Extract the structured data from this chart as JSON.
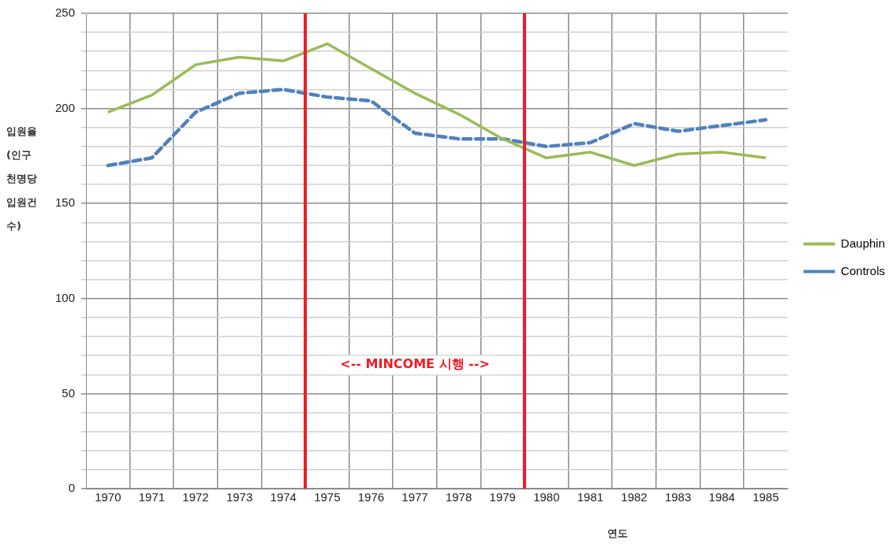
{
  "chart_data": {
    "type": "line",
    "ylabel": "입원율 (인구 천명당 입원건수)",
    "xlabel": "연도",
    "x": [
      1970,
      1971,
      1972,
      1973,
      1974,
      1975,
      1976,
      1977,
      1978,
      1979,
      1980,
      1981,
      1982,
      1983,
      1984,
      1985
    ],
    "series": [
      {
        "name": "Dauphin",
        "color": "#9bbb59",
        "line_style": "solid",
        "values": [
          198,
          207,
          223,
          227,
          225,
          234,
          221,
          208,
          197,
          184,
          174,
          177,
          170,
          176,
          177,
          174
        ]
      },
      {
        "name": "Controls",
        "color": "#4f81bd",
        "line_style": "dashed",
        "values": [
          170,
          174,
          198,
          208,
          210,
          206,
          204,
          187,
          184,
          184,
          180,
          182,
          192,
          188,
          191,
          194
        ]
      }
    ],
    "xlim": [
      1969.5,
      1985.5
    ],
    "xticks": [
      1970,
      1971,
      1972,
      1973,
      1974,
      1975,
      1976,
      1977,
      1978,
      1979,
      1980,
      1981,
      1982,
      1983,
      1984,
      1985,
      {
        "value": 1970.5,
        "label": null
      },
      {
        "value": 1971.5,
        "label": null
      },
      {
        "value": 1972.5,
        "label": null
      },
      {
        "value": 1973.5,
        "label": null
      },
      {
        "value": 1975.5,
        "label": null
      },
      {
        "value": 1976.5,
        "label": null
      },
      {
        "value": 1977.5,
        "label": null
      },
      {
        "value": 1978.5,
        "label": null
      },
      {
        "value": 1980.5,
        "label": null
      },
      {
        "value": 1981.5,
        "label": null
      },
      {
        "value": 1982.5,
        "label": null
      },
      {
        "value": 1983.5,
        "label": null
      },
      {
        "value": 1984.5,
        "label": null
      }
    ],
    "ylim": [
      0,
      250
    ],
    "yticks": [
      0,
      {
        "value": 10,
        "label": null
      },
      {
        "value": 20,
        "label": null
      },
      {
        "value": 30,
        "label": null
      },
      {
        "value": 40,
        "label": null
      },
      50,
      {
        "value": 60,
        "label": null
      },
      {
        "value": 70,
        "label": null
      },
      {
        "value": 80,
        "label": null
      },
      {
        "value": 90,
        "label": null
      },
      100,
      {
        "value": 110,
        "label": null
      },
      {
        "value": 120,
        "label": null
      },
      {
        "value": 130,
        "label": null
      },
      {
        "value": 140,
        "label": null
      },
      150,
      {
        "value": 160,
        "label": null
      },
      {
        "value": 170,
        "label": null
      },
      {
        "value": 180,
        "label": null
      },
      {
        "value": 190,
        "label": null
      },
      200,
      {
        "value": 210,
        "label": null
      },
      {
        "value": 220,
        "label": null
      },
      {
        "value": 230,
        "label": null
      },
      {
        "value": 240,
        "label": null
      },
      250
    ],
    "grid": true,
    "legend": "right",
    "marker": "none",
    "ref_lines": [
      {
        "axis": "x",
        "value": 1974.5,
        "color": "#ee1c25"
      },
      {
        "axis": "x",
        "value": 1979.5,
        "color": "#ee1c25"
      }
    ],
    "annotations": [
      "<-- MINCOME 시행 -->"
    ]
  }
}
